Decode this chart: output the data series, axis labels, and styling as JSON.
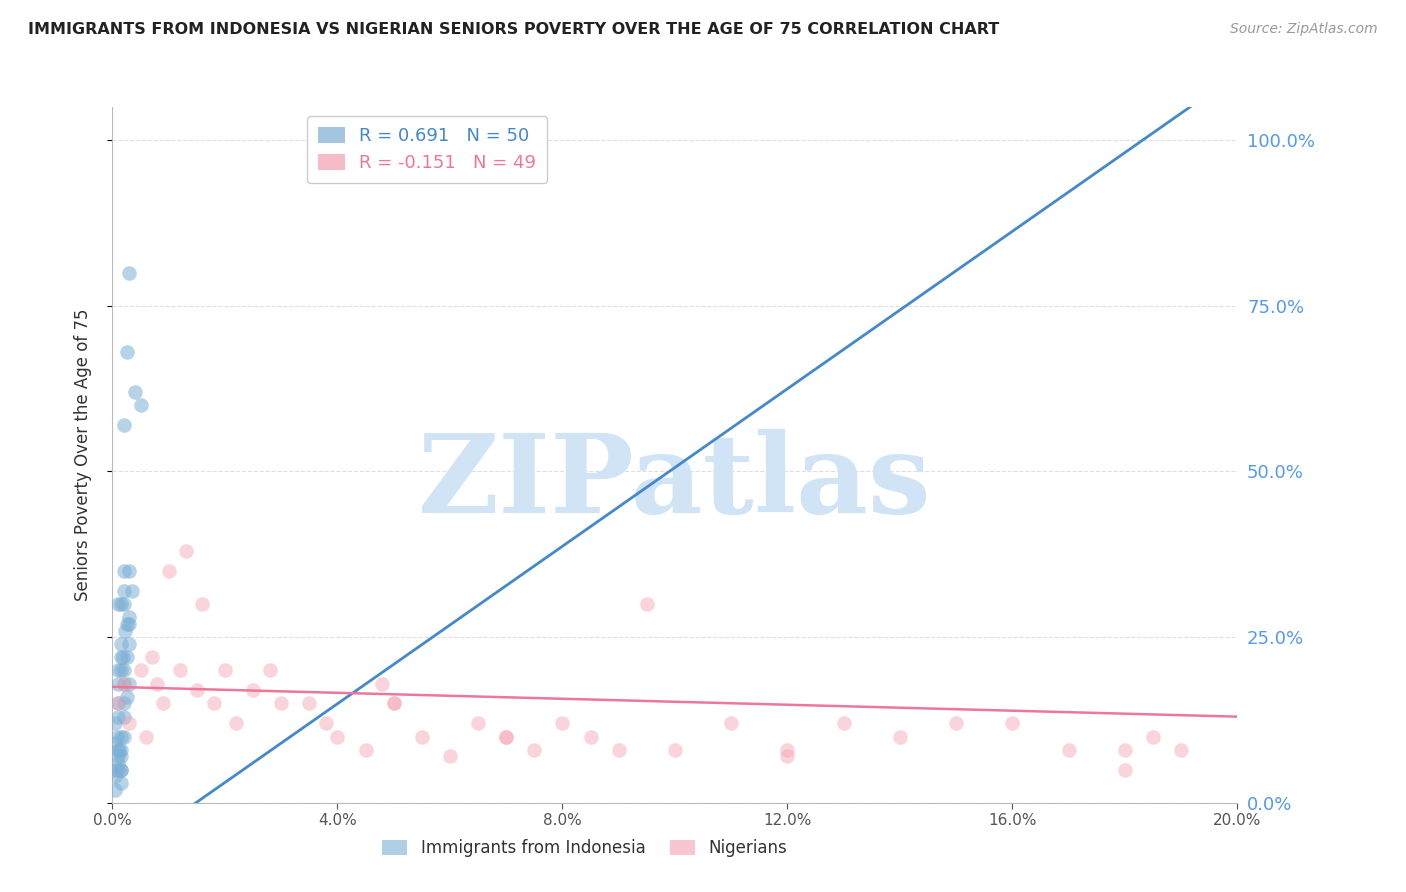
{
  "title": "IMMIGRANTS FROM INDONESIA VS NIGERIAN SENIORS POVERTY OVER THE AGE OF 75 CORRELATION CHART",
  "source": "Source: ZipAtlas.com",
  "ylabel": "Seniors Poverty Over the Age of 75",
  "watermark": "ZIPatlas",
  "blue_label": "Immigrants from Indonesia",
  "pink_label": "Nigerians",
  "blue_R": "0.691",
  "blue_N": "50",
  "pink_R": "-0.151",
  "pink_N": "49",
  "xlim": [
    0.0,
    0.2
  ],
  "ylim": [
    0.0,
    1.05
  ],
  "yticks": [
    0.0,
    0.25,
    0.5,
    0.75,
    1.0
  ],
  "xticks": [
    0.0,
    0.04,
    0.08,
    0.12,
    0.16,
    0.2
  ],
  "blue_scatter_x": [
    0.0005,
    0.001,
    0.0008,
    0.0012,
    0.0015,
    0.001,
    0.0005,
    0.002,
    0.0018,
    0.0022,
    0.0015,
    0.002,
    0.003,
    0.003,
    0.0025,
    0.001,
    0.002,
    0.0025,
    0.003,
    0.0015,
    0.002,
    0.001,
    0.0015,
    0.0025,
    0.004,
    0.002,
    0.0015,
    0.001,
    0.002,
    0.0005,
    0.001,
    0.003,
    0.0015,
    0.002,
    0.003,
    0.001,
    0.0015,
    0.0005,
    0.0025,
    0.002,
    0.0035,
    0.0015,
    0.001,
    0.002,
    0.005,
    0.0005,
    0.001,
    0.0015,
    0.0015,
    0.003
  ],
  "blue_scatter_y": [
    0.12,
    0.15,
    0.1,
    0.08,
    0.22,
    0.18,
    0.05,
    0.2,
    0.22,
    0.26,
    0.3,
    0.32,
    0.35,
    0.8,
    0.68,
    0.3,
    0.35,
    0.22,
    0.27,
    0.05,
    0.1,
    0.13,
    0.08,
    0.16,
    0.62,
    0.57,
    0.24,
    0.2,
    0.13,
    0.02,
    0.06,
    0.24,
    0.2,
    0.18,
    0.28,
    0.08,
    0.05,
    0.04,
    0.27,
    0.3,
    0.32,
    0.1,
    0.07,
    0.15,
    0.6,
    0.09,
    0.05,
    0.07,
    0.03,
    0.18
  ],
  "pink_scatter_x": [
    0.001,
    0.002,
    0.003,
    0.005,
    0.006,
    0.007,
    0.008,
    0.009,
    0.01,
    0.012,
    0.013,
    0.015,
    0.016,
    0.018,
    0.02,
    0.022,
    0.025,
    0.028,
    0.03,
    0.035,
    0.038,
    0.04,
    0.045,
    0.048,
    0.05,
    0.055,
    0.06,
    0.065,
    0.07,
    0.075,
    0.08,
    0.085,
    0.09,
    0.095,
    0.1,
    0.11,
    0.12,
    0.13,
    0.14,
    0.15,
    0.16,
    0.17,
    0.18,
    0.185,
    0.19,
    0.05,
    0.07,
    0.12,
    0.18
  ],
  "pink_scatter_y": [
    0.15,
    0.18,
    0.12,
    0.2,
    0.1,
    0.22,
    0.18,
    0.15,
    0.35,
    0.2,
    0.38,
    0.17,
    0.3,
    0.15,
    0.2,
    0.12,
    0.17,
    0.2,
    0.15,
    0.15,
    0.12,
    0.1,
    0.08,
    0.18,
    0.15,
    0.1,
    0.07,
    0.12,
    0.1,
    0.08,
    0.12,
    0.1,
    0.08,
    0.3,
    0.08,
    0.12,
    0.08,
    0.12,
    0.1,
    0.12,
    0.12,
    0.08,
    0.08,
    0.1,
    0.08,
    0.15,
    0.1,
    0.07,
    0.05
  ],
  "blue_line_x": [
    -0.002,
    0.2
  ],
  "blue_line_y": [
    -0.1,
    1.1
  ],
  "pink_line_x": [
    0.0,
    0.2
  ],
  "pink_line_y": [
    0.175,
    0.13
  ],
  "blue_color": "#7BAFD4",
  "pink_color": "#F4A0B0",
  "blue_line_color": "#4488CC",
  "pink_line_color": "#EE7799",
  "title_color": "#222222",
  "right_axis_color": "#5599EE",
  "watermark_color": "#D0E4F5",
  "background_color": "#FFFFFF",
  "grid_color": "#DDDDEE"
}
